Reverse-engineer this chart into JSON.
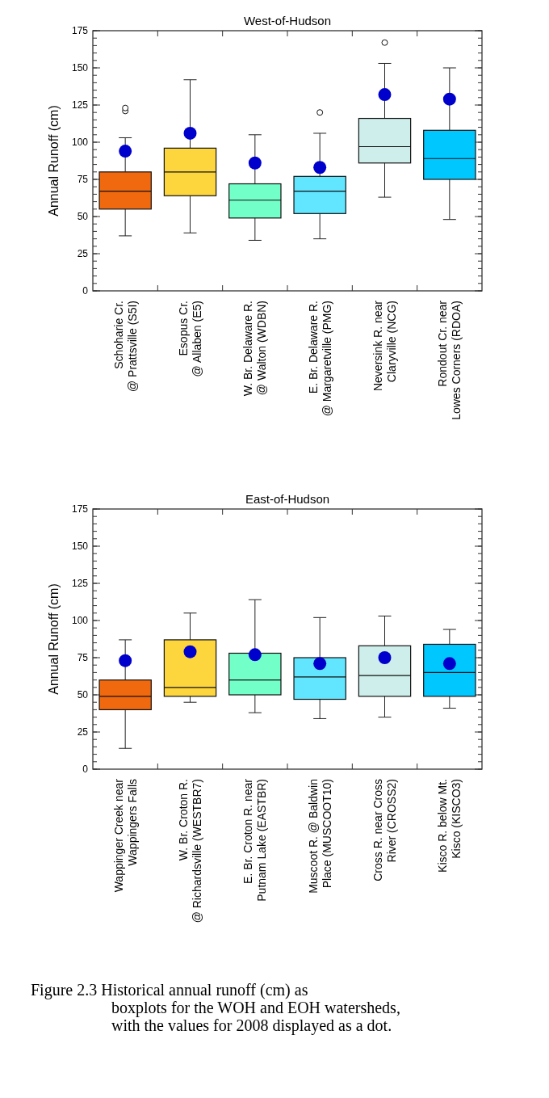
{
  "chart_data": [
    {
      "type": "box",
      "title": "West-of-Hudson",
      "ylabel": "Annual Runoff (cm)",
      "categories": [
        "Schoharie Cr. @ Prattsville (S5I)",
        "Esopus Cr. @ Allaben (E5)",
        "W. Br. Delaware R. @ Walton (WDBN)",
        "E. Br. Delaware R. @ Margaretville (PMG)",
        "Neversink R. near Claryville (NCG)",
        "Rondout Cr. near Lowes Corners (RDOA)"
      ],
      "colors": [
        "#f0690f",
        "#fdd53d",
        "#73ffc8",
        "#62e5ff",
        "#cdeeea",
        "#00c8ff"
      ],
      "ylim": [
        0,
        175
      ],
      "yticks": [
        0,
        25,
        50,
        75,
        100,
        125,
        150,
        175
      ],
      "boxes": [
        {
          "low": 37,
          "q1": 55,
          "median": 67,
          "q3": 80,
          "high": 103,
          "outliers": [
            121,
            123
          ]
        },
        {
          "low": 39,
          "q1": 64,
          "median": 80,
          "q3": 96,
          "high": 142
        },
        {
          "low": 34,
          "q1": 49,
          "median": 61,
          "q3": 72,
          "high": 105
        },
        {
          "low": 35,
          "q1": 52,
          "median": 67,
          "q3": 77,
          "high": 106,
          "outliers": [
            120
          ]
        },
        {
          "low": 63,
          "q1": 86,
          "median": 97,
          "q3": 116,
          "high": 153,
          "outliers": [
            167
          ]
        },
        {
          "low": 48,
          "q1": 75,
          "median": 89,
          "q3": 108,
          "high": 150
        }
      ],
      "series": [
        {
          "type": "scatter",
          "color": "#0000cc",
          "marker": "circle",
          "x": [
            "Schoharie Cr. @ Prattsville (S5I)",
            "Esopus Cr. @ Allaben (E5)",
            "W. Br. Delaware R. @ Walton (WDBN)",
            "E. Br. Delaware R. @ Margaretville (PMG)",
            "Neversink R. near Claryville (NCG)",
            "Rondout Cr. near Lowes Corners (RDOA)"
          ],
          "values": [
            94,
            106,
            86,
            83,
            132,
            129
          ]
        }
      ]
    },
    {
      "type": "box",
      "title": "East-of-Hudson",
      "ylabel": "Annual Runoff (cm)",
      "categories": [
        "Wappinger Creek near Wappingers Falls",
        "W. Br. Croton R. @ Richardsville (WESTBR7)",
        "E. Br. Croton R. near Putnam Lake (EASTBR)",
        "Muscoot R. @ Baldwin Place (MUSCOOT10)",
        "Cross R. near Cross River (CROSS2)",
        "Kisco R. below Mt. Kisco (KISCO3)"
      ],
      "colors": [
        "#f0690f",
        "#fdd53d",
        "#73ffc8",
        "#62e5ff",
        "#cdeeea",
        "#00c8ff"
      ],
      "ylim": [
        0,
        175
      ],
      "yticks": [
        0,
        25,
        50,
        75,
        100,
        125,
        150,
        175
      ],
      "boxes": [
        {
          "low": 14,
          "q1": 40,
          "median": 49,
          "q3": 60,
          "high": 87
        },
        {
          "low": 45,
          "q1": 49,
          "median": 55,
          "q3": 87,
          "high": 105
        },
        {
          "low": 38,
          "q1": 50,
          "median": 60,
          "q3": 78,
          "high": 114
        },
        {
          "low": 34,
          "q1": 47,
          "median": 62,
          "q3": 75,
          "high": 102
        },
        {
          "low": 35,
          "q1": 49,
          "median": 63,
          "q3": 83,
          "high": 103
        },
        {
          "low": 41,
          "q1": 49,
          "median": 65,
          "q3": 84,
          "high": 94
        }
      ],
      "series": [
        {
          "type": "scatter",
          "color": "#0000cc",
          "marker": "circle",
          "x": [
            "Wappinger Creek near Wappingers Falls",
            "W. Br. Croton R. @ Richardsville (WESTBR7)",
            "E. Br. Croton R. near Putnam Lake (EASTBR)",
            "Muscoot R. @ Baldwin Place (MUSCOOT10)",
            "Cross R. near Cross River (CROSS2)",
            "Kisco R. below Mt. Kisco (KISCO3)"
          ],
          "values": [
            73,
            79,
            77,
            71,
            75,
            71
          ]
        }
      ],
      "annotations": [
        "Figure 2.3  Historical annual runoff (cm) as boxplots for the WOH and EOH watersheds, with the values for 2008 displayed as a dot."
      ]
    }
  ]
}
